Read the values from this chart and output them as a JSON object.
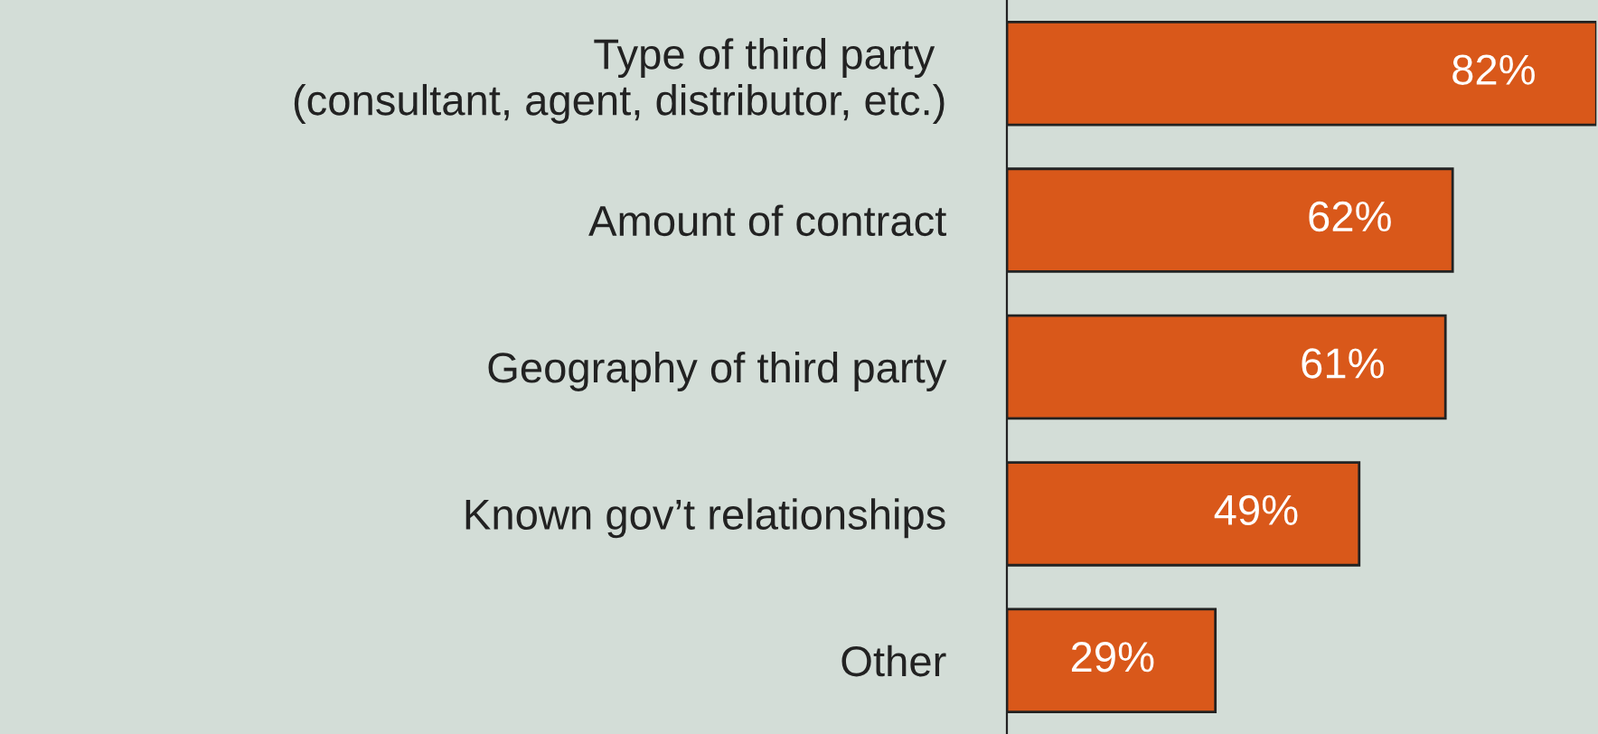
{
  "chart_data": {
    "type": "bar",
    "orientation": "horizontal",
    "categories": [
      "Type of third party \n(consultant, agent, distributor, etc.)",
      "Amount of contract",
      "Geography of third party",
      "Known gov’t relationships",
      "Other"
    ],
    "values": [
      82,
      62,
      61,
      49,
      29
    ],
    "value_labels": [
      "82%",
      "62%",
      "61%",
      "49%",
      "29%"
    ],
    "color": "#d9581a",
    "xlim": [
      0,
      82
    ],
    "tick_labels": "y",
    "grid": false,
    "legend": false
  }
}
